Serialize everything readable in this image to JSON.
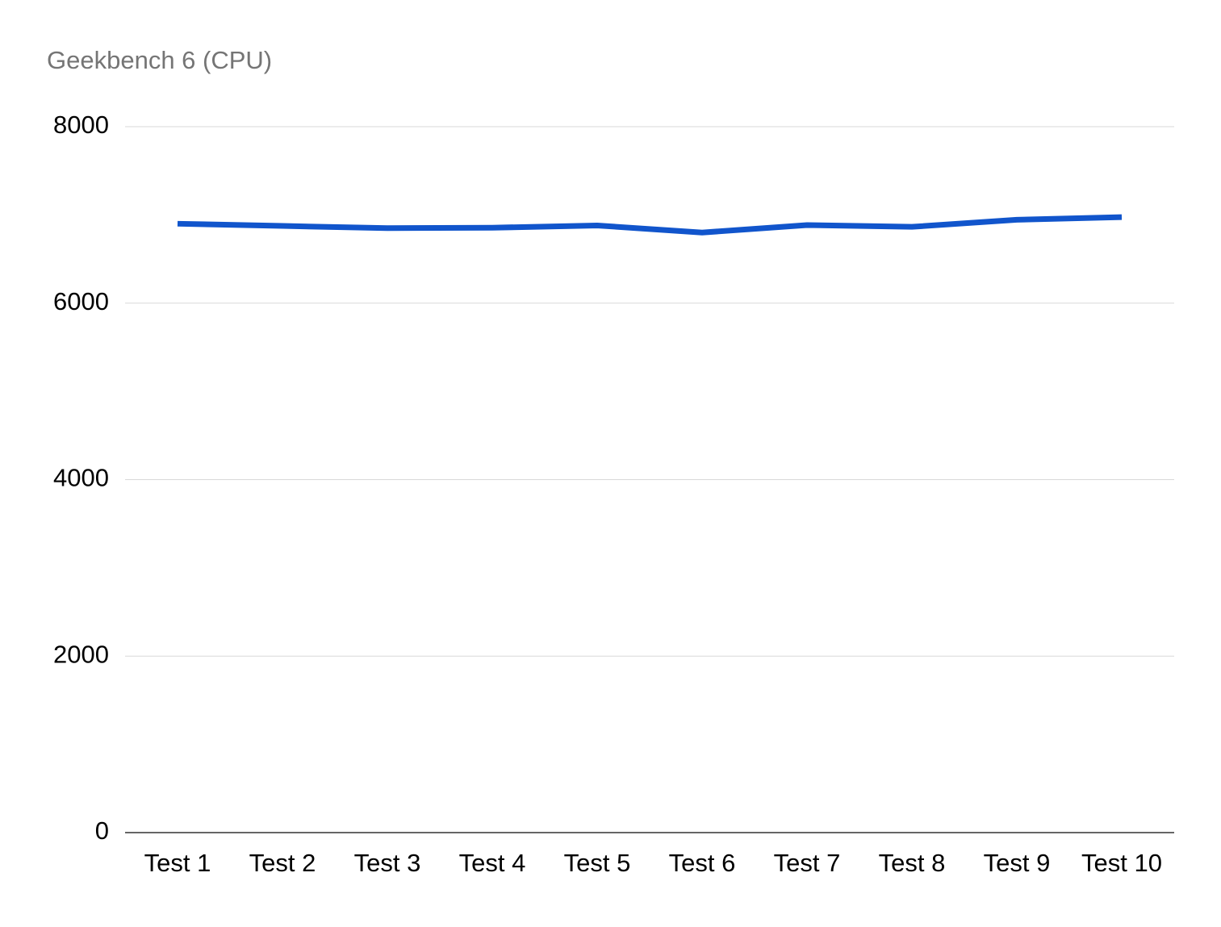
{
  "chart_data": {
    "type": "line",
    "title": "Geekbench 6 (CPU)",
    "categories": [
      "Test 1",
      "Test 2",
      "Test 3",
      "Test 4",
      "Test 5",
      "Test 6",
      "Test 7",
      "Test 8",
      "Test 9",
      "Test 10"
    ],
    "series": [
      {
        "name": "Geekbench 6 (CPU)",
        "color": "#1155cc",
        "values": [
          6900,
          6875,
          6850,
          6855,
          6880,
          6800,
          6885,
          6865,
          6945,
          6975
        ]
      }
    ],
    "ylim": [
      0,
      8000
    ],
    "yticks": [
      0,
      2000,
      4000,
      6000,
      8000
    ],
    "grid": true
  }
}
